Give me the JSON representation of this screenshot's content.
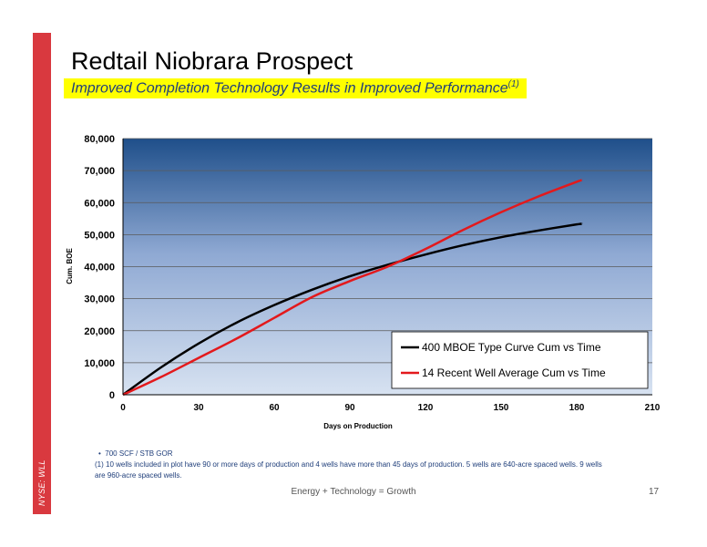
{
  "slide": {
    "title": "Redtail Niobrara Prospect",
    "subtitle": "Improved Completion Technology Results in Improved Performance",
    "subtitle_sup": "(1)",
    "side_label": "NYSE: WLL",
    "footer": "Energy + Technology = Growth",
    "page_number": "17",
    "bullet": "700 SCF / STB GOR",
    "footnote": "(1) 10 wells included in plot have 90 or more days of production and 4 wells have more than 45 days of production. 5 wells are 640-acre spaced wells. 9 wells are 960-acre spaced wells.",
    "colors": {
      "side_bar": "#d9393f",
      "highlight": "#ffff00",
      "text_blue": "#1f3e7a"
    }
  },
  "chart_data": {
    "type": "line",
    "xlabel": "Days on Production",
    "ylabel": "Cum. BOE",
    "xlim": [
      0,
      210
    ],
    "ylim": [
      0,
      80000
    ],
    "x_ticks": [
      0,
      30,
      60,
      90,
      120,
      150,
      180,
      210
    ],
    "y_ticks": [
      0,
      10000,
      20000,
      30000,
      40000,
      50000,
      60000,
      70000,
      80000
    ],
    "x_tick_labels": [
      "0",
      "30",
      "60",
      "90",
      "120",
      "150",
      "180",
      "210"
    ],
    "y_tick_labels": [
      "0",
      "10,000",
      "20,000",
      "30,000",
      "40,000",
      "50,000",
      "60,000",
      "70,000",
      "80,000"
    ],
    "grid": "horizontal",
    "legend_position": "bottom-right",
    "series": [
      {
        "name": "400 MBOE Type Curve Cum vs Time",
        "color": "#000000",
        "x": [
          0,
          15,
          30,
          45,
          60,
          75,
          90,
          105,
          120,
          135,
          150,
          165,
          180,
          182
        ],
        "y": [
          0,
          8500,
          16000,
          22500,
          28000,
          32800,
          37000,
          40600,
          43800,
          46700,
          49200,
          51300,
          53200,
          53300
        ]
      },
      {
        "name": "14 Recent Well Average Cum vs Time",
        "color": "#e3191c",
        "x": [
          0,
          15,
          30,
          45,
          60,
          75,
          90,
          105,
          120,
          135,
          150,
          165,
          180,
          182
        ],
        "y": [
          0,
          5500,
          11500,
          17500,
          24000,
          30500,
          35500,
          40000,
          45500,
          51500,
          57000,
          62000,
          66500,
          67000
        ]
      }
    ]
  }
}
